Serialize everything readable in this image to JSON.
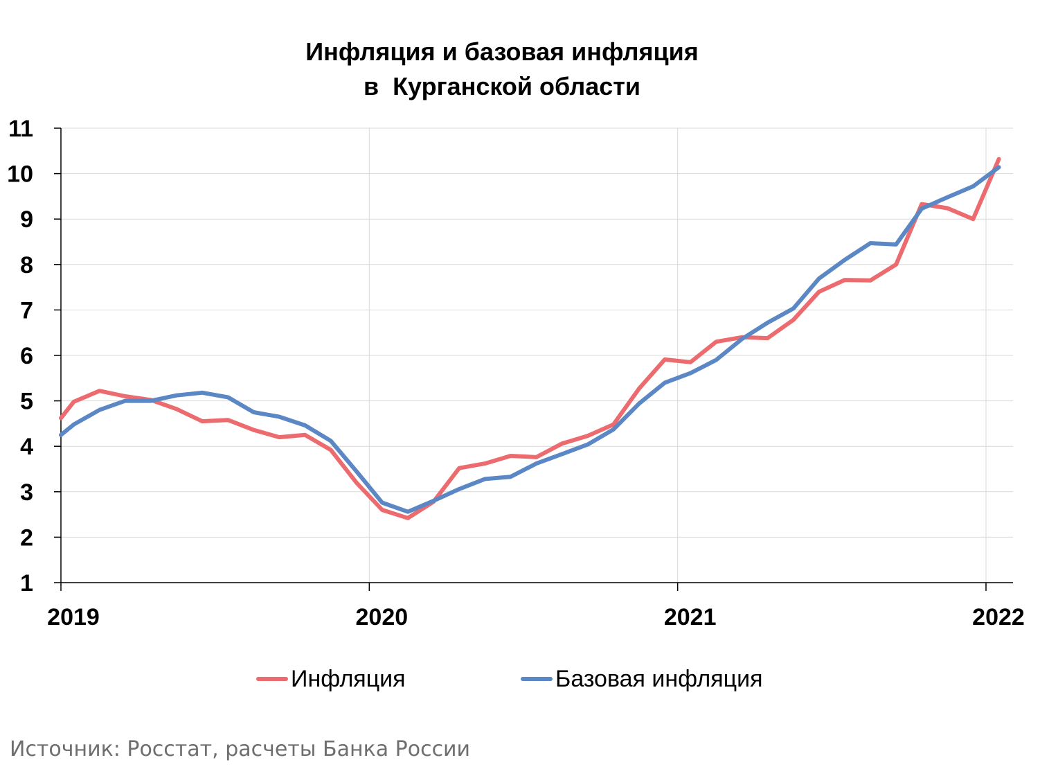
{
  "chart_data": {
    "type": "line",
    "title": "Инфляция и базовая инфляция",
    "subtitle": "в  Курганской области",
    "ylim": [
      1,
      11
    ],
    "yticks": [
      1,
      2,
      3,
      4,
      5,
      6,
      7,
      8,
      9,
      10,
      11
    ],
    "xlim": [
      0,
      37
    ],
    "xtick_labels": [
      {
        "label": "2019",
        "x": 0
      },
      {
        "label": "2020",
        "x": 12
      },
      {
        "label": "2021",
        "x": 24
      },
      {
        "label": "2022",
        "x": 36
      }
    ],
    "grid": true,
    "legend_position": "bottom",
    "x": [
      0,
      0.5,
      1.5,
      2.5,
      3.5,
      4.5,
      5.5,
      6.5,
      7.5,
      8.5,
      9.5,
      10.5,
      11.5,
      12.5,
      13.5,
      14.5,
      15.5,
      16.5,
      17.5,
      18.5,
      19.5,
      20.5,
      21.5,
      22.5,
      23.5,
      24.5,
      25.5,
      26.5,
      27.5,
      28.5,
      29.5,
      30.5,
      31.5,
      32.5,
      33.5,
      34.5,
      35.5,
      36.5
    ],
    "series": [
      {
        "name": "Инфляция",
        "color": "#ec6b6e",
        "values": [
          4.62,
          4.98,
          5.22,
          5.1,
          5.02,
          4.82,
          4.55,
          4.58,
          4.36,
          4.2,
          4.25,
          3.92,
          3.2,
          2.6,
          2.42,
          2.78,
          3.52,
          3.62,
          3.79,
          3.76,
          4.06,
          4.23,
          4.48,
          5.27,
          5.91,
          5.85,
          6.3,
          6.4,
          6.38,
          6.78,
          7.4,
          7.66,
          7.65,
          8.0,
          9.33,
          9.24,
          9.0,
          10.32
        ]
      },
      {
        "name": "Базовая инфляция",
        "color": "#5b87c4",
        "values": [
          4.25,
          4.48,
          4.8,
          5.0,
          5.0,
          5.12,
          5.18,
          5.08,
          4.75,
          4.65,
          4.46,
          4.12,
          3.45,
          2.76,
          2.56,
          2.8,
          3.06,
          3.28,
          3.33,
          3.62,
          3.83,
          4.04,
          4.37,
          4.94,
          5.4,
          5.61,
          5.9,
          6.36,
          6.72,
          7.03,
          7.69,
          8.1,
          8.47,
          8.44,
          9.23,
          9.48,
          9.72,
          10.14
        ]
      }
    ],
    "source": "Источник: Росстат, расчеты Банка России"
  }
}
